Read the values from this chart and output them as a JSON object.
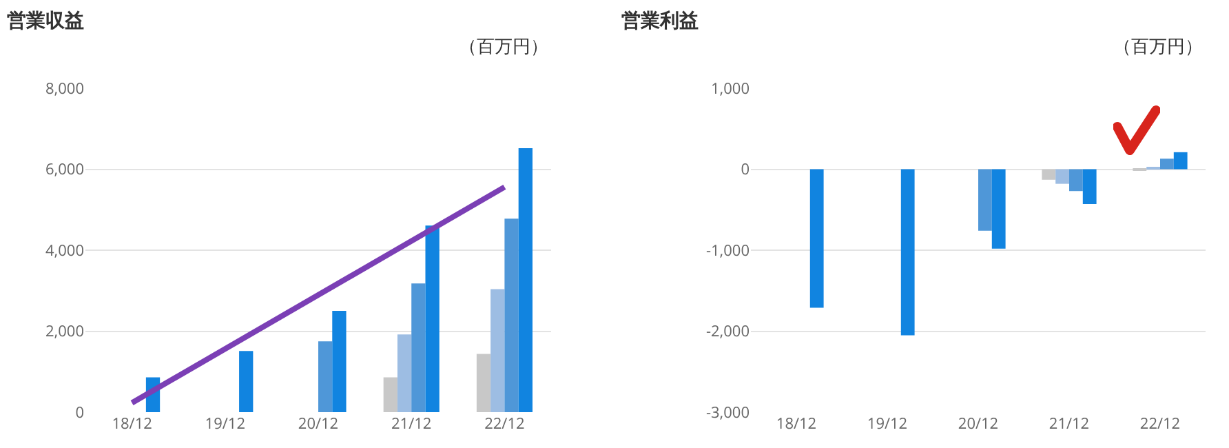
{
  "chart_data": [
    {
      "type": "bar",
      "title": "営業収益",
      "annotations": [
        "（百万円）"
      ],
      "categories": [
        "18/12",
        "19/12",
        "20/12",
        "21/12",
        "22/12"
      ],
      "series": [
        {
          "color": "#c8c8c8",
          "values": [
            null,
            null,
            null,
            860,
            1440
          ]
        },
        {
          "color": "#9dbde3",
          "values": [
            null,
            null,
            null,
            1920,
            3040
          ]
        },
        {
          "color": "#4f97d8",
          "values": [
            null,
            null,
            1750,
            3180,
            4780
          ]
        },
        {
          "color": "#1184e0",
          "values": [
            860,
            1510,
            2500,
            4610,
            6520
          ]
        },
        {
          "type": "line",
          "color": "#7b3fb5",
          "x": [
            "18/12",
            "22/12"
          ],
          "values": [
            230,
            5560
          ]
        }
      ],
      "ylim": [
        0,
        8000
      ],
      "yticks": [
        {
          "value": 0,
          "label": "0"
        },
        {
          "value": 2000,
          "label": "2,000"
        },
        {
          "value": 4000,
          "label": "4,000"
        },
        {
          "value": 6000,
          "label": "6,000"
        },
        {
          "value": 8000,
          "label": "8,000"
        }
      ],
      "grid": "y"
    },
    {
      "type": "bar",
      "title": "営業利益",
      "annotations": [
        "（百万円）"
      ],
      "categories": [
        "18/12",
        "19/12",
        "20/12",
        "21/12",
        "22/12"
      ],
      "series": [
        {
          "color": "#c8c8c8",
          "values": [
            null,
            null,
            null,
            -130,
            -20
          ]
        },
        {
          "color": "#9dbde3",
          "values": [
            null,
            null,
            null,
            -180,
            20
          ]
        },
        {
          "color": "#4f97d8",
          "values": [
            null,
            null,
            -760,
            -270,
            130
          ]
        },
        {
          "color": "#1184e0",
          "values": [
            -1710,
            -2050,
            -980,
            -430,
            210
          ]
        }
      ],
      "ylim": [
        -3000,
        1000
      ],
      "yticks": [
        {
          "value": -3000,
          "label": "-3,000"
        },
        {
          "value": -2000,
          "label": "-2,000"
        },
        {
          "value": -1000,
          "label": "-1,000"
        },
        {
          "value": 0,
          "label": "0"
        },
        {
          "value": 1000,
          "label": "1,000"
        }
      ],
      "grid": "y"
    }
  ]
}
